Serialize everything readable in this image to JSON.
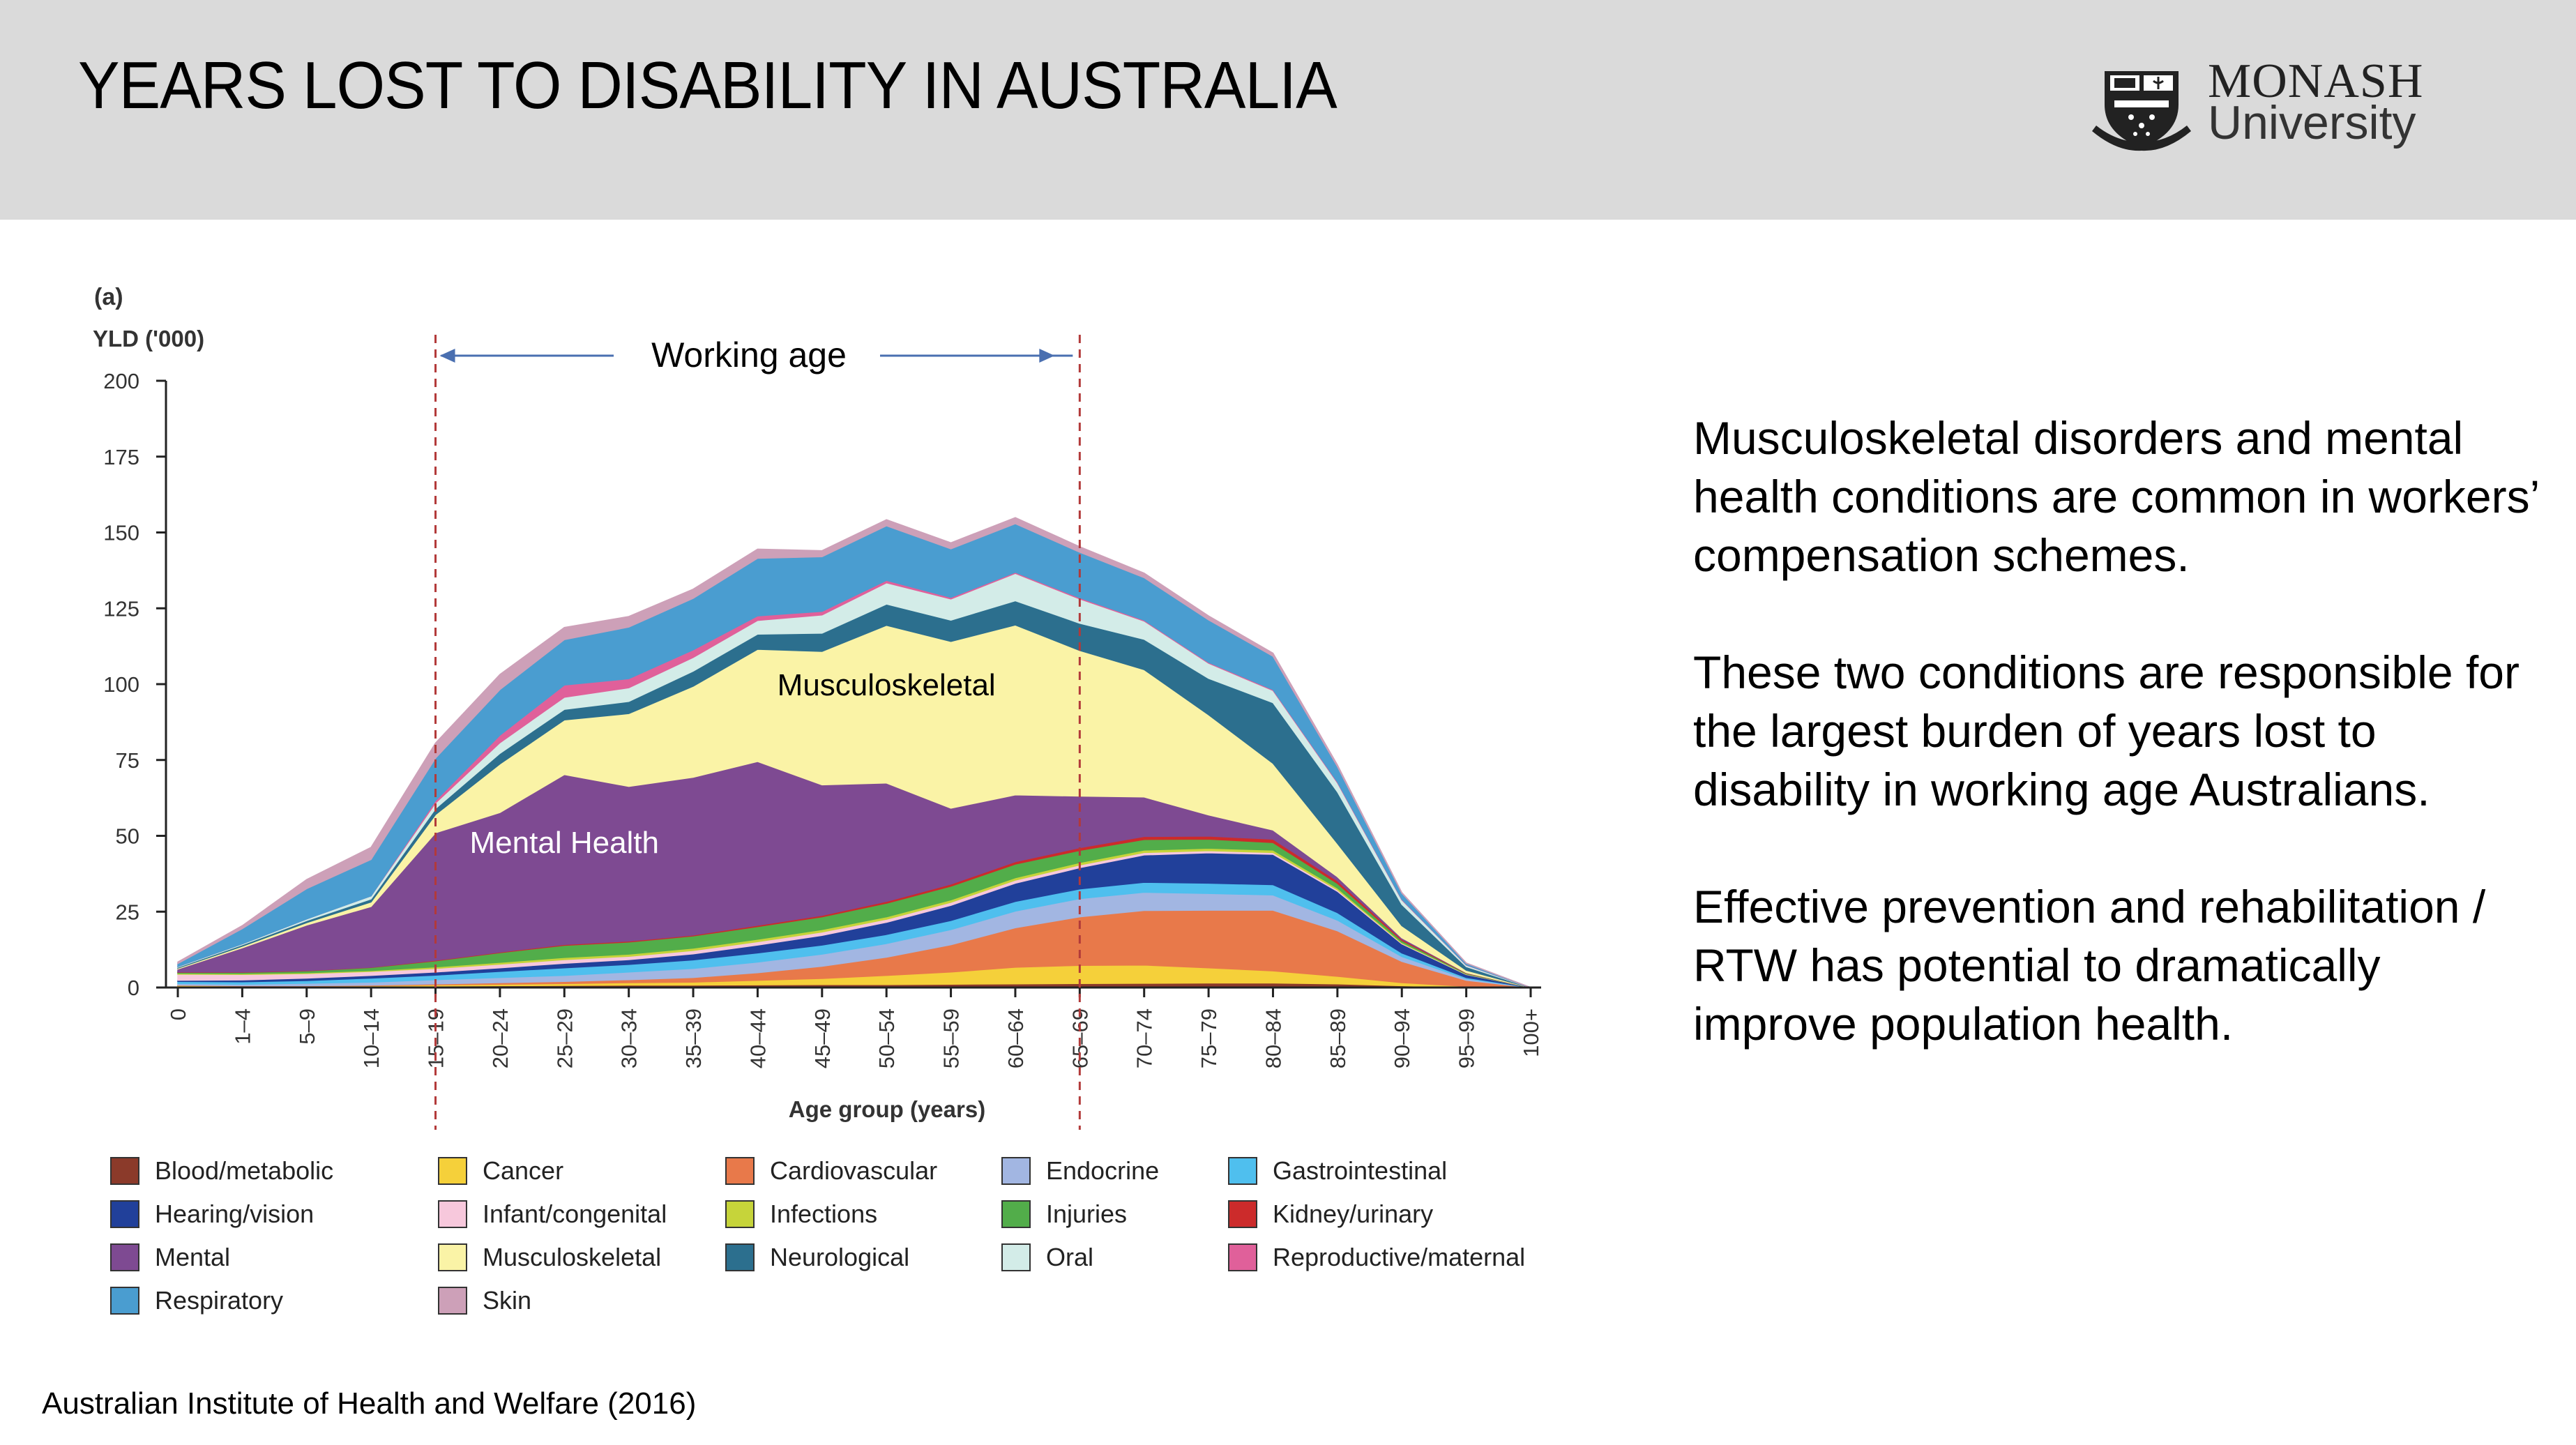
{
  "header": {
    "title": "YEARS LOST TO DISABILITY IN AUSTRALIA",
    "logo_name": "MONASH",
    "logo_sub": "University"
  },
  "side_text": {
    "paragraphs": [
      "Musculoskeletal disorders and mental health conditions are common in workers’ compensation schemes.",
      "These two conditions are responsible for the largest burden of years lost to disability in working age Australians.",
      "Effective prevention and rehabilitation / RTW has potential to dramatically improve population health."
    ]
  },
  "source": "Australian Institute of Health and Welfare (2016)",
  "chart_data": {
    "type": "area",
    "stacked": true,
    "panel_label": "(a)",
    "ylabel": "YLD ('000)",
    "xlabel": "Age group (years)",
    "ylim": [
      0,
      200
    ],
    "yticks": [
      0,
      25,
      50,
      75,
      100,
      125,
      150,
      175,
      200
    ],
    "categories": [
      "0",
      "1–4",
      "5–9",
      "10–14",
      "15–19",
      "20–24",
      "25–29",
      "30–34",
      "35–39",
      "40–44",
      "45–49",
      "50–54",
      "55–59",
      "60–64",
      "65–69",
      "70–74",
      "75–79",
      "80–84",
      "85–89",
      "90–94",
      "95–99",
      "100+"
    ],
    "annotations": {
      "working_age": {
        "label": "Working age",
        "from": "15–19",
        "to": "65–69"
      },
      "area_labels": [
        {
          "text": "Musculoskeletal",
          "x": "50–54",
          "y": 100
        },
        {
          "text": "Mental Health",
          "x": "25–29",
          "y": 48
        }
      ]
    },
    "series": [
      {
        "name": "Blood/metabolic",
        "color": "#8b3a2a",
        "values": [
          0.5,
          0.3,
          0.3,
          0.3,
          0.5,
          0.6,
          0.7,
          0.8,
          0.8,
          0.9,
          1,
          1,
          1.1,
          1.2,
          1.3,
          1.4,
          1.5,
          1.5,
          1.2,
          0.6,
          0.2,
          0
        ]
      },
      {
        "name": "Cancer",
        "color": "#f5d03a",
        "values": [
          0.2,
          0.2,
          0.2,
          0.3,
          0.4,
          0.5,
          0.6,
          0.8,
          1,
          1.5,
          2,
          3,
          4,
          5.5,
          6,
          6,
          5,
          4,
          2.5,
          1,
          0.2,
          0
        ]
      },
      {
        "name": "Cardiovascular",
        "color": "#e8794a",
        "values": [
          0.1,
          0.1,
          0.1,
          0.2,
          0.3,
          0.5,
          0.7,
          1,
          1.5,
          2.5,
          4,
          6,
          9,
          13,
          16,
          18,
          19,
          20,
          15,
          7,
          2,
          0
        ]
      },
      {
        "name": "Endocrine",
        "color": "#a2b6e2",
        "values": [
          0.5,
          0.5,
          0.8,
          1,
          1.4,
          1.7,
          2,
          2.5,
          3,
          3.5,
          4,
          4.5,
          5,
          5.5,
          6,
          6,
          5.5,
          5,
          3.5,
          1.6,
          0.5,
          0
        ]
      },
      {
        "name": "Gastrointestinal",
        "color": "#4fbfee",
        "values": [
          0.7,
          0.8,
          0.9,
          1.3,
          1.5,
          2,
          2.5,
          2.5,
          2.8,
          3,
          3,
          3,
          3,
          3.2,
          3.2,
          3.3,
          3.4,
          3.4,
          2.5,
          1.2,
          0.4,
          0
        ]
      },
      {
        "name": "Hearing/vision",
        "color": "#21409a",
        "values": [
          0.4,
          0.6,
          0.8,
          0.9,
          1,
          1.2,
          1.5,
          1.6,
          2,
          2.6,
          3.2,
          4,
          5,
          6,
          7,
          9,
          10,
          10,
          7,
          3,
          1,
          0
        ]
      },
      {
        "name": "Infant/congenital",
        "color": "#f7c8dc",
        "values": [
          2,
          1.8,
          1.5,
          1.3,
          1.2,
          1.2,
          1.2,
          1.1,
          1.1,
          1.1,
          1.1,
          1,
          1,
          1,
          0.9,
          0.8,
          0.7,
          0.6,
          0.5,
          0.2,
          0.1,
          0
        ]
      },
      {
        "name": "Infections",
        "color": "#c6d43a",
        "values": [
          0.3,
          0.3,
          0.3,
          0.3,
          0.5,
          0.6,
          0.7,
          0.7,
          0.8,
          0.8,
          0.8,
          0.8,
          0.8,
          0.8,
          0.8,
          0.8,
          0.8,
          0.8,
          0.6,
          0.3,
          0.1,
          0
        ]
      },
      {
        "name": "Injuries",
        "color": "#52ad4a",
        "values": [
          0.3,
          0.4,
          0.6,
          1,
          2,
          3.2,
          4,
          4,
          4,
          4.2,
          4.2,
          4.5,
          4.5,
          4.5,
          4,
          3.5,
          3,
          2.5,
          1.5,
          0.6,
          0.2,
          0
        ]
      },
      {
        "name": "Kidney/urinary",
        "color": "#cc2b2b",
        "values": [
          0.1,
          0.1,
          0.1,
          0.1,
          0.2,
          0.2,
          0.3,
          0.3,
          0.3,
          0.4,
          0.5,
          0.6,
          0.7,
          0.8,
          0.9,
          1,
          1,
          1.1,
          0.9,
          0.4,
          0.1,
          0
        ]
      },
      {
        "name": "Mental",
        "color": "#7e4a92",
        "values": [
          1,
          8,
          15,
          20,
          42,
          46,
          56,
          51,
          52,
          54,
          43,
          39,
          25,
          22,
          17,
          13,
          7,
          3,
          1.3,
          0.5,
          0.1,
          0
        ]
      },
      {
        "name": "Musculoskeletal",
        "color": "#faf3a6",
        "values": [
          0.3,
          0.5,
          0.8,
          1.5,
          6,
          16,
          18,
          24,
          30,
          37,
          44,
          52,
          55,
          56,
          48,
          42,
          33,
          22,
          11,
          4,
          0.8,
          0
        ]
      },
      {
        "name": "Neurological",
        "color": "#2c6f8e",
        "values": [
          0.3,
          0.5,
          0.7,
          1,
          2,
          3.5,
          3.5,
          4,
          5,
          5,
          6,
          7,
          7,
          8,
          9,
          10,
          12,
          20,
          17,
          7,
          1.2,
          0
        ]
      },
      {
        "name": "Oral",
        "color": "#d3ece8",
        "values": [
          0.2,
          0.3,
          0.5,
          1,
          1.8,
          3.5,
          4,
          4.5,
          4.5,
          4.5,
          6,
          7,
          7,
          9,
          8,
          6,
          5,
          4,
          3,
          1.5,
          0.5,
          0
        ]
      },
      {
        "name": "Reproductive/maternal",
        "color": "#e0609a",
        "values": [
          0,
          0,
          0,
          0,
          0.8,
          2.5,
          4,
          3,
          2.5,
          1.5,
          1.2,
          0.8,
          0.5,
          0.4,
          0.4,
          0.3,
          0.3,
          0.3,
          0.3,
          0.2,
          0.1,
          0
        ]
      },
      {
        "name": "Respiratory",
        "color": "#4a9dd0",
        "values": [
          1,
          5,
          10,
          12,
          14,
          15,
          15,
          17,
          17,
          19,
          18,
          18,
          16,
          16,
          15,
          14,
          14,
          11,
          5,
          2,
          0.5,
          0
        ]
      },
      {
        "name": "Skin",
        "color": "#cda0b8",
        "values": [
          0.5,
          1,
          3,
          4,
          5,
          5,
          4,
          3.5,
          3,
          3,
          2,
          2,
          2,
          2,
          1.8,
          1.5,
          1.3,
          1,
          0.6,
          0.2,
          0.1,
          0
        ]
      }
    ]
  }
}
